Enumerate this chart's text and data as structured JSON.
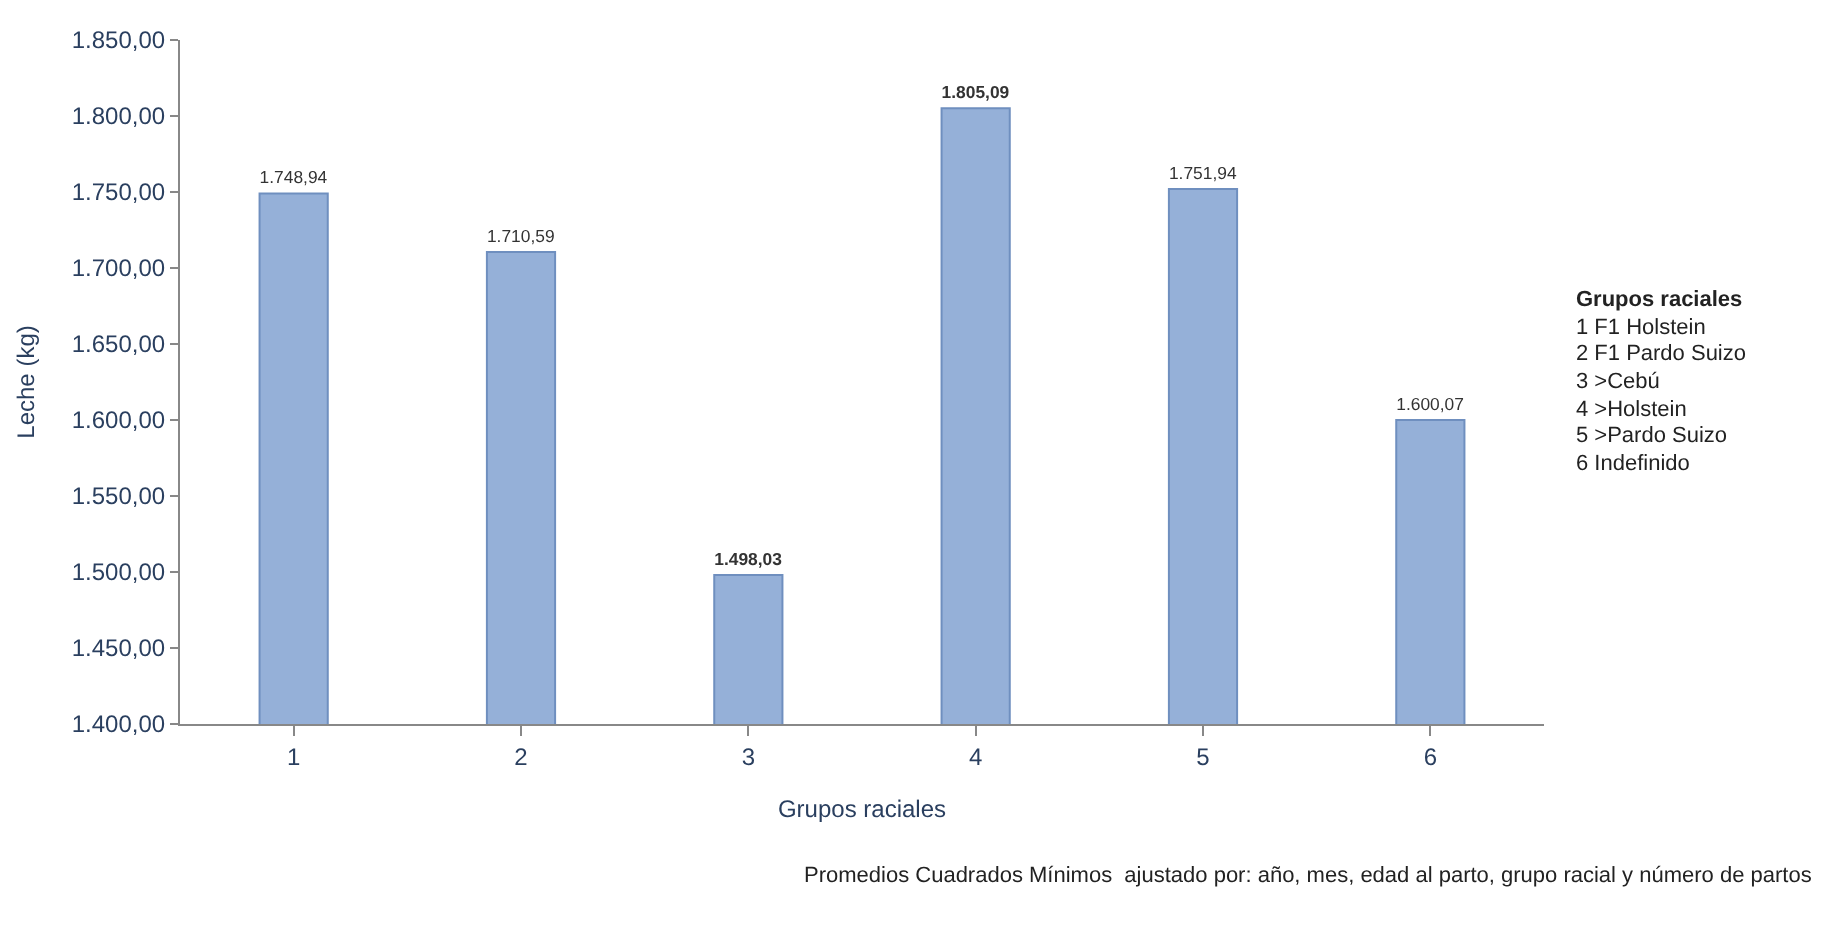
{
  "chart_data": {
    "type": "bar",
    "xlabel": "Grupos raciales",
    "ylabel": "Leche (kg)",
    "categories": [
      "1",
      "2",
      "3",
      "4",
      "5",
      "6"
    ],
    "values": [
      1748.94,
      1710.59,
      1498.03,
      1805.09,
      1751.94,
      1600.07
    ],
    "value_labels": [
      "1.748,94",
      "1.710,59",
      "1.498,03",
      "1.805,09",
      "1.751,94",
      "1.600,07"
    ],
    "color": "#95b0d8",
    "ylim": [
      1400,
      1850
    ],
    "yticks": [
      {
        "value": 1400,
        "label": "1.400,00"
      },
      {
        "value": 1450,
        "label": "1.450,00"
      },
      {
        "value": 1500,
        "label": "1.500,00"
      },
      {
        "value": 1550,
        "label": "1.550,00"
      },
      {
        "value": 1600,
        "label": "1.600,00"
      },
      {
        "value": 1650,
        "label": "1.650,00"
      },
      {
        "value": 1700,
        "label": "1.700,00"
      },
      {
        "value": 1750,
        "label": "1.750,00"
      },
      {
        "value": 1800,
        "label": "1.800,00"
      },
      {
        "value": 1850,
        "label": "1.850,00"
      }
    ],
    "legend": false,
    "annotations": [
      "Grupos raciales",
      "1 F1 Holstein",
      "2 F1 Pardo Suizo",
      "3 >Cebú",
      "4 >Holstein",
      "5 >Pardo Suizo",
      "6 Indefinido",
      "Promedios Cuadrados Mínimos  ajustado por: año, mes, edad al parto, grupo racial y número de partos"
    ]
  }
}
